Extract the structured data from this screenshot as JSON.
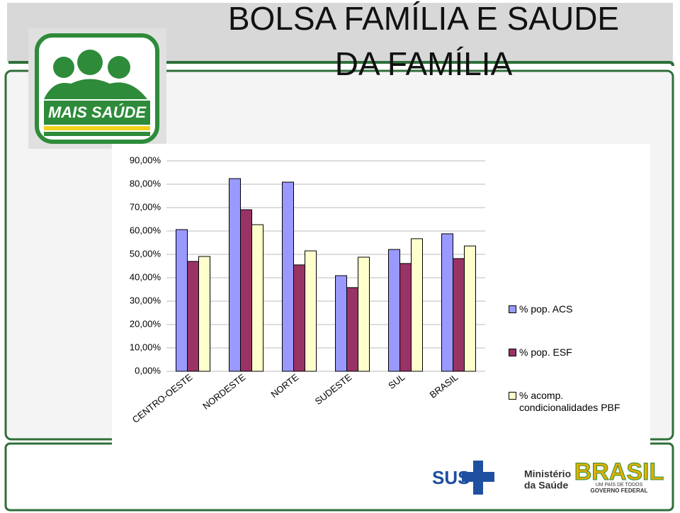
{
  "slide": {
    "title_lines": [
      "BOLSA FAMÍLIA E SAUDE",
      "DA FAMÍLIA"
    ],
    "logos": {
      "program": "MAIS SAÚDE",
      "sus": "SUS",
      "ministry_lines": [
        "Ministério",
        "da Saúde"
      ],
      "brasil": "BRASIL",
      "brasil_motto": "UM PAÍS DE TODOS",
      "government": "GOVERNO FEDERAL"
    }
  },
  "chart_data": {
    "type": "bar",
    "categories": [
      "CENTRO-OESTE",
      "NORDESTE",
      "NORTE",
      "SUDESTE",
      "SUL",
      "BRASIL"
    ],
    "series": [
      {
        "name": "% pop. ACS",
        "color": "#9999ff",
        "values": [
          60.6,
          82.4,
          80.9,
          40.9,
          52.1,
          58.8
        ]
      },
      {
        "name": "% pop. ESF",
        "color": "#993366",
        "values": [
          47.0,
          69.1,
          45.5,
          35.8,
          46.1,
          48.2
        ]
      },
      {
        "name": "% acomp. condicionalidades PBF",
        "color": "#ffffcc",
        "values": [
          49.1,
          62.7,
          51.5,
          48.8,
          56.7,
          53.6
        ]
      }
    ],
    "ylim": [
      0,
      90
    ],
    "yticks": [
      {
        "value": 0,
        "label": "0,00%"
      },
      {
        "value": 10,
        "label": "10,00%"
      },
      {
        "value": 20,
        "label": "20,00%"
      },
      {
        "value": 30,
        "label": "30,00%"
      },
      {
        "value": 40,
        "label": "40,00%"
      },
      {
        "value": 50,
        "label": "50,00%"
      },
      {
        "value": 60,
        "label": "60,00%"
      },
      {
        "value": 70,
        "label": "70,00%"
      },
      {
        "value": 80,
        "label": "80,00%"
      },
      {
        "value": 90,
        "label": "90,00%"
      }
    ],
    "grid": true,
    "legend": "right"
  }
}
